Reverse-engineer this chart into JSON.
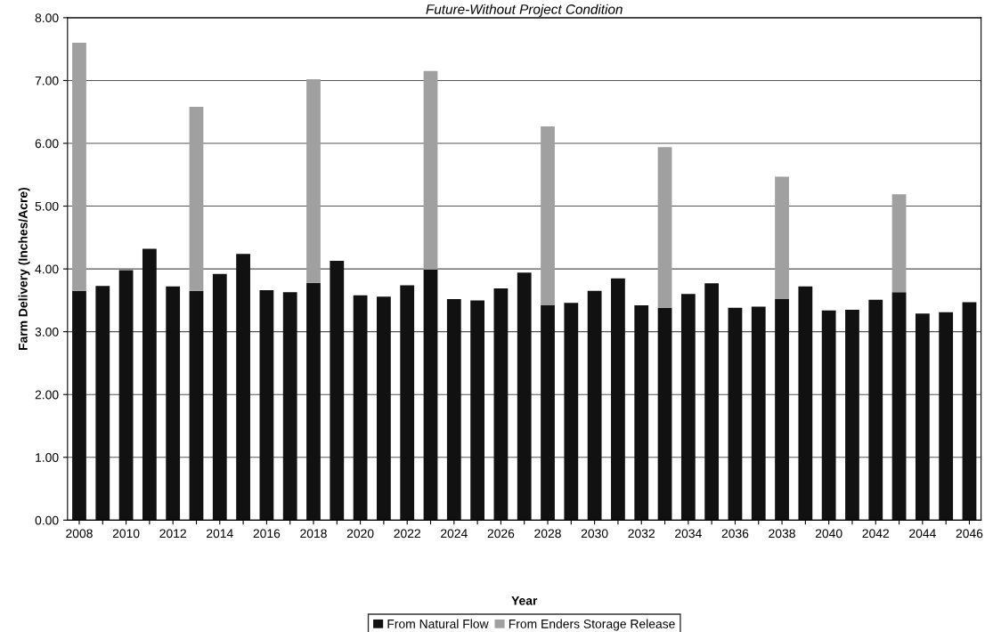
{
  "chart_data": {
    "type": "bar",
    "title": "Future-Without Project Condition",
    "xlabel": "Year",
    "ylabel": "Farm Delivery (Inches/Acre)",
    "categories": [
      "2008",
      null,
      "2010",
      null,
      "2012",
      null,
      "2014",
      null,
      "2016",
      null,
      "2018",
      null,
      "2020",
      null,
      "2022",
      null,
      "2024",
      null,
      "2026",
      null,
      "2028",
      null,
      "2030",
      null,
      "2032",
      null,
      "2034",
      null,
      "2036",
      null,
      "2038",
      null,
      "2040",
      null,
      "2042",
      null,
      "2044",
      null,
      "2046"
    ],
    "stacked": true,
    "series": [
      {
        "name": "From Natural Flow",
        "color": "#111111",
        "values": [
          3.65,
          3.73,
          3.98,
          4.32,
          3.72,
          3.65,
          3.92,
          4.24,
          3.66,
          3.63,
          3.78,
          4.13,
          3.58,
          3.56,
          3.74,
          3.99,
          3.52,
          3.5,
          3.69,
          3.94,
          3.42,
          3.46,
          3.65,
          3.85,
          3.42,
          3.38,
          3.6,
          3.77,
          3.38,
          3.4,
          3.52,
          3.72,
          3.34,
          3.35,
          3.51,
          3.63,
          3.29,
          3.31,
          3.47
        ]
      },
      {
        "name": "From Enders Storage Release",
        "color": "#a0a0a0",
        "values": [
          3.95,
          null,
          null,
          null,
          null,
          2.93,
          null,
          null,
          null,
          null,
          3.24,
          null,
          null,
          null,
          null,
          3.16,
          null,
          null,
          null,
          null,
          2.85,
          null,
          null,
          null,
          null,
          2.56,
          null,
          null,
          null,
          null,
          1.95,
          null,
          null,
          null,
          null,
          1.56,
          null,
          null,
          null
        ]
      }
    ],
    "ylim": [
      0,
      8
    ],
    "yticks": [
      {
        "value": 0,
        "label": "0.00"
      },
      {
        "value": 1,
        "label": "1.00"
      },
      {
        "value": 2,
        "label": "2.00"
      },
      {
        "value": 3,
        "label": "3.00"
      },
      {
        "value": 4,
        "label": "4.00"
      },
      {
        "value": 5,
        "label": "5.00"
      },
      {
        "value": 6,
        "label": "6.00"
      },
      {
        "value": 7,
        "label": "7.00"
      },
      {
        "value": 8,
        "label": "8.00"
      }
    ],
    "grid": "y",
    "legend": "bottom"
  }
}
